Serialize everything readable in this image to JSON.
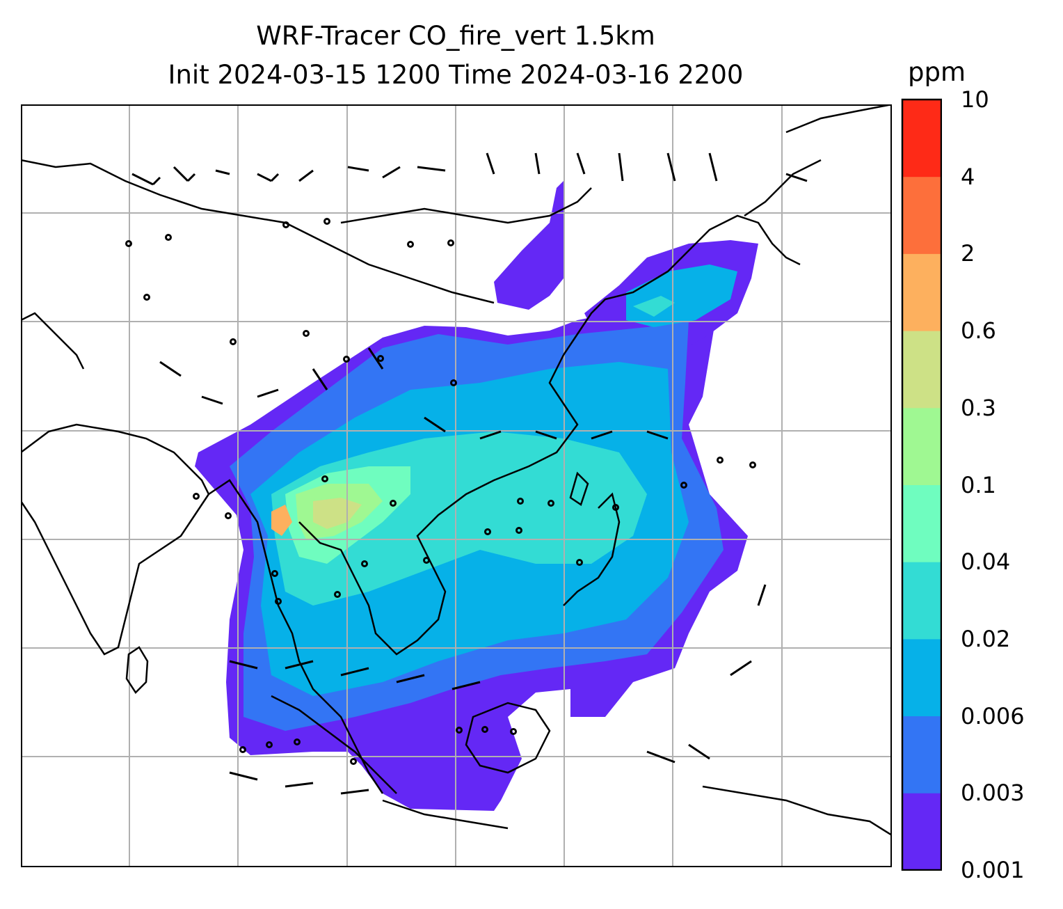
{
  "title": {
    "line1": "WRF-Tracer CO_fire_vert 1.5km",
    "line2": "Init 2024-03-15 1200 Time 2024-03-16 2200"
  },
  "colorbar": {
    "unit": "ppm",
    "ticks": [
      "0.001",
      "0.003",
      "0.006",
      "0.02",
      "0.04",
      "0.1",
      "0.3",
      "0.6",
      "2",
      "4",
      "10"
    ],
    "colors": [
      "#6428f5",
      "#3375f4",
      "#06b1e8",
      "#33dcd4",
      "#6ffdbf",
      "#9ff892",
      "#cde186",
      "#fdb05e",
      "#fd6f3b",
      "#fe2a17"
    ]
  },
  "map": {
    "gridlines": "on",
    "gridline_color": "#b0b0b0",
    "coastline_color": "#000000",
    "wind_barbs": "on"
  }
}
